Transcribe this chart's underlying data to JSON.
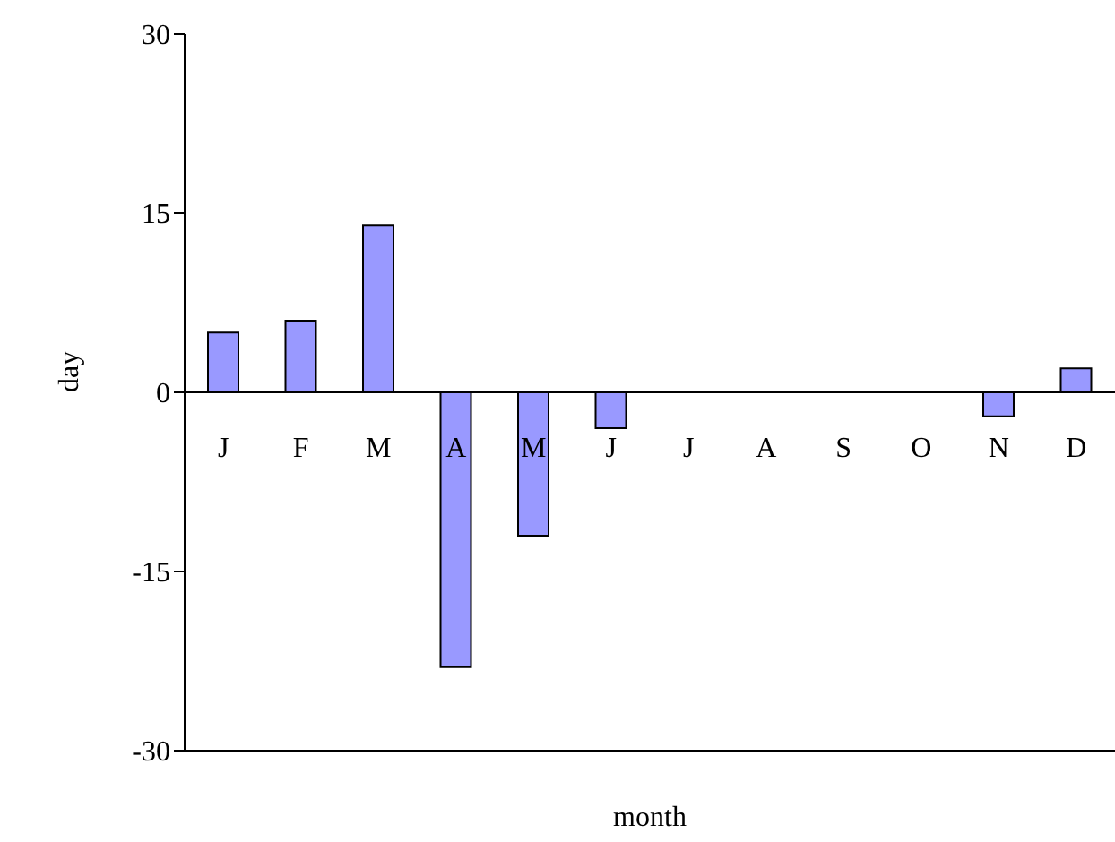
{
  "chart_data": {
    "type": "bar",
    "xlabel": "month",
    "ylabel": "day",
    "categories": [
      "J",
      "F",
      "M",
      "A",
      "M",
      "J",
      "J",
      "A",
      "S",
      "O",
      "N",
      "D"
    ],
    "values": [
      5,
      6,
      14,
      -23,
      -12,
      -3,
      0,
      0,
      0,
      0,
      -2,
      2
    ],
    "color": "#9999ff",
    "ylim": [
      -30,
      30
    ],
    "yticks": [
      -30,
      -15,
      0,
      15,
      30
    ]
  }
}
